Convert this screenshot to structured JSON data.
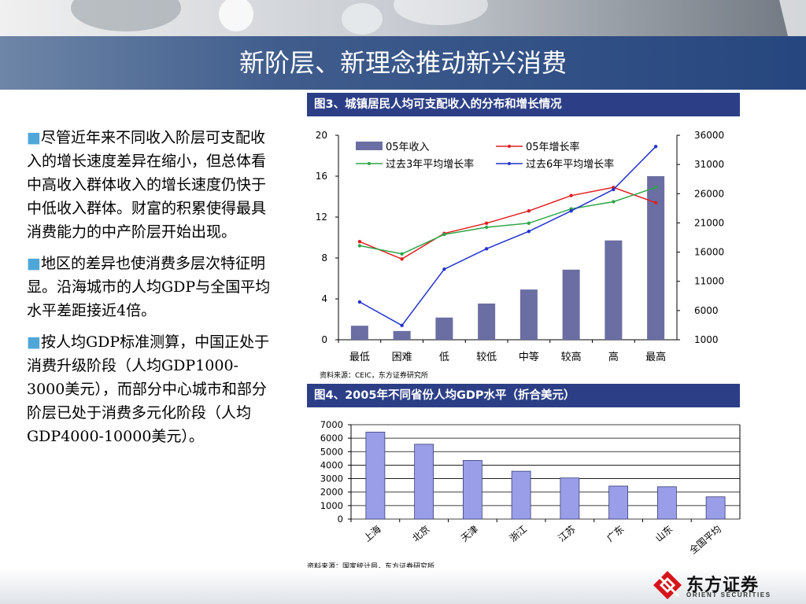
{
  "slide": {
    "title": "新阶层、新理念推动新兴消费",
    "bullets": [
      "尽管近年来不同收入阶层可支配收入的增长速度差异在缩小，但总体看中高收入群体收入的增长速度仍快于中低收入群体。财富的积累使得最具消费能力的中产阶层开始出现。",
      "地区的差异也使消费多层次特征明显。沿海城市的人均GDP与全国平均水平差距接近4倍。",
      "按人均GDP标准测算，中国正处于消费升级阶段（人均GDP1000-3000美元），而部分中心城市和部分阶层已处于消费多元化阶段（人均GDP4000-10000美元）。"
    ],
    "bullet_marker": "■",
    "logo": {
      "name": "东方证券",
      "english": "ORIENT SECURITIES"
    }
  },
  "colors": {
    "banner": "#26467f",
    "caption_bar": "#2c3f86",
    "bar": "#6b6ea3",
    "bar2": "#9a9ee8",
    "growth05": "#e02020",
    "avg3": "#2ea64a",
    "avg6": "#2233cc",
    "bullet_marker": "#4fa6d8"
  },
  "chart_data": [
    {
      "type": "bar",
      "caption": "图3、城镇居民人均可支配收入的分布和增长情况",
      "source": "资料来源：CEIC，东方证券研究所",
      "categories": [
        "最低",
        "困难",
        "低",
        "较低",
        "中等",
        "较高",
        "高",
        "最高"
      ],
      "left_axis": {
        "ticks": [
          "0",
          "4",
          "8",
          "12",
          "16",
          "20"
        ],
        "range": [
          0,
          20
        ]
      },
      "right_axis": {
        "ticks": [
          "1000",
          "6000",
          "11000",
          "16000",
          "21000",
          "26000",
          "31000",
          "36000"
        ],
        "range": [
          1000,
          36000
        ]
      },
      "series": [
        {
          "name": "05年收入",
          "kind": "bar",
          "axis": "right",
          "values": [
            3400,
            2500,
            4800,
            7200,
            9600,
            13000,
            18000,
            29000
          ]
        },
        {
          "name": "05年增长率",
          "kind": "line",
          "axis": "left",
          "values": [
            9.6,
            7.9,
            10.4,
            11.4,
            12.6,
            14.1,
            14.9,
            13.4
          ]
        },
        {
          "name": "过去3年平均增长率",
          "kind": "line",
          "axis": "left",
          "values": [
            9.2,
            8.4,
            10.3,
            11.0,
            11.4,
            12.8,
            13.5,
            14.9
          ]
        },
        {
          "name": "过去6年平均增长率",
          "kind": "line",
          "axis": "left",
          "values": [
            3.7,
            1.4,
            6.9,
            8.9,
            10.6,
            12.6,
            14.7,
            18.9
          ]
        }
      ],
      "legend": "top-inside"
    },
    {
      "type": "bar",
      "caption": "图4、2005年不同省份人均GDP水平（折合美元）",
      "source": "资料来源：国家统计局，东方证券研究所",
      "categories": [
        "上海",
        "北京",
        "天津",
        "浙江",
        "江苏",
        "广东",
        "山东",
        "全国平均"
      ],
      "values": [
        6450,
        5550,
        4350,
        3550,
        3050,
        2450,
        2400,
        1650
      ],
      "y_ticks": [
        "0",
        "1000",
        "2000",
        "3000",
        "4000",
        "5000",
        "6000",
        "7000"
      ],
      "ylim": [
        0,
        7000
      ],
      "grid": true
    }
  ]
}
